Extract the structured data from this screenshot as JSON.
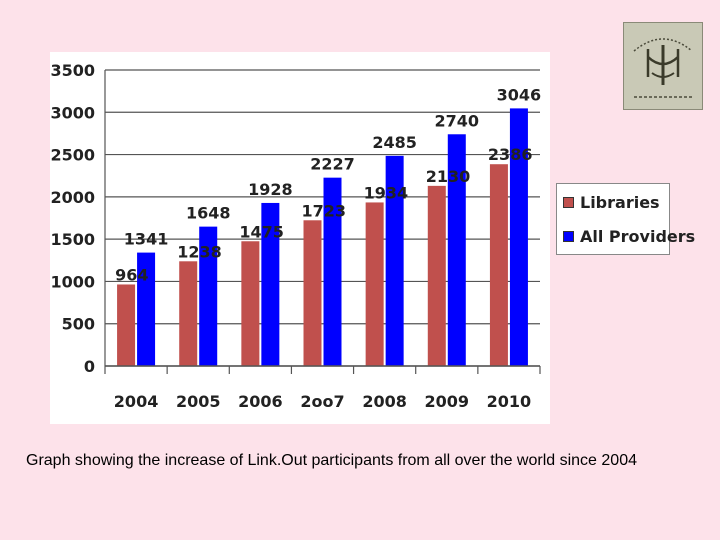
{
  "caption": "Graph showing the increase of Link.Out participants from all over the world since 2004",
  "colors": {
    "background": "#fde2ea",
    "libraries": "#c0504d",
    "all_providers": "#0000ff"
  },
  "chart_data": {
    "type": "bar",
    "categories": [
      "2004",
      "2005",
      "2006",
      "2oo7",
      "2008",
      "2009",
      "2010"
    ],
    "series": [
      {
        "name": "Libraries",
        "values": [
          964,
          1238,
          1475,
          1723,
          1934,
          2130,
          2386
        ],
        "labels": [
          "964",
          "1238",
          "1475",
          "1723",
          "1934",
          "2130",
          "2386"
        ]
      },
      {
        "name": "All Providers",
        "values": [
          1341,
          1648,
          1928,
          2227,
          2485,
          2740,
          3046
        ],
        "labels": [
          "1341",
          "1648",
          "1928",
          "2227",
          "2485",
          "2740",
          "3046"
        ]
      }
    ],
    "yticks": [
      0,
      500,
      1000,
      1500,
      2000,
      2500,
      3000,
      3500
    ],
    "ylim": [
      0,
      3500
    ],
    "grid": true,
    "legend_position": "right"
  }
}
